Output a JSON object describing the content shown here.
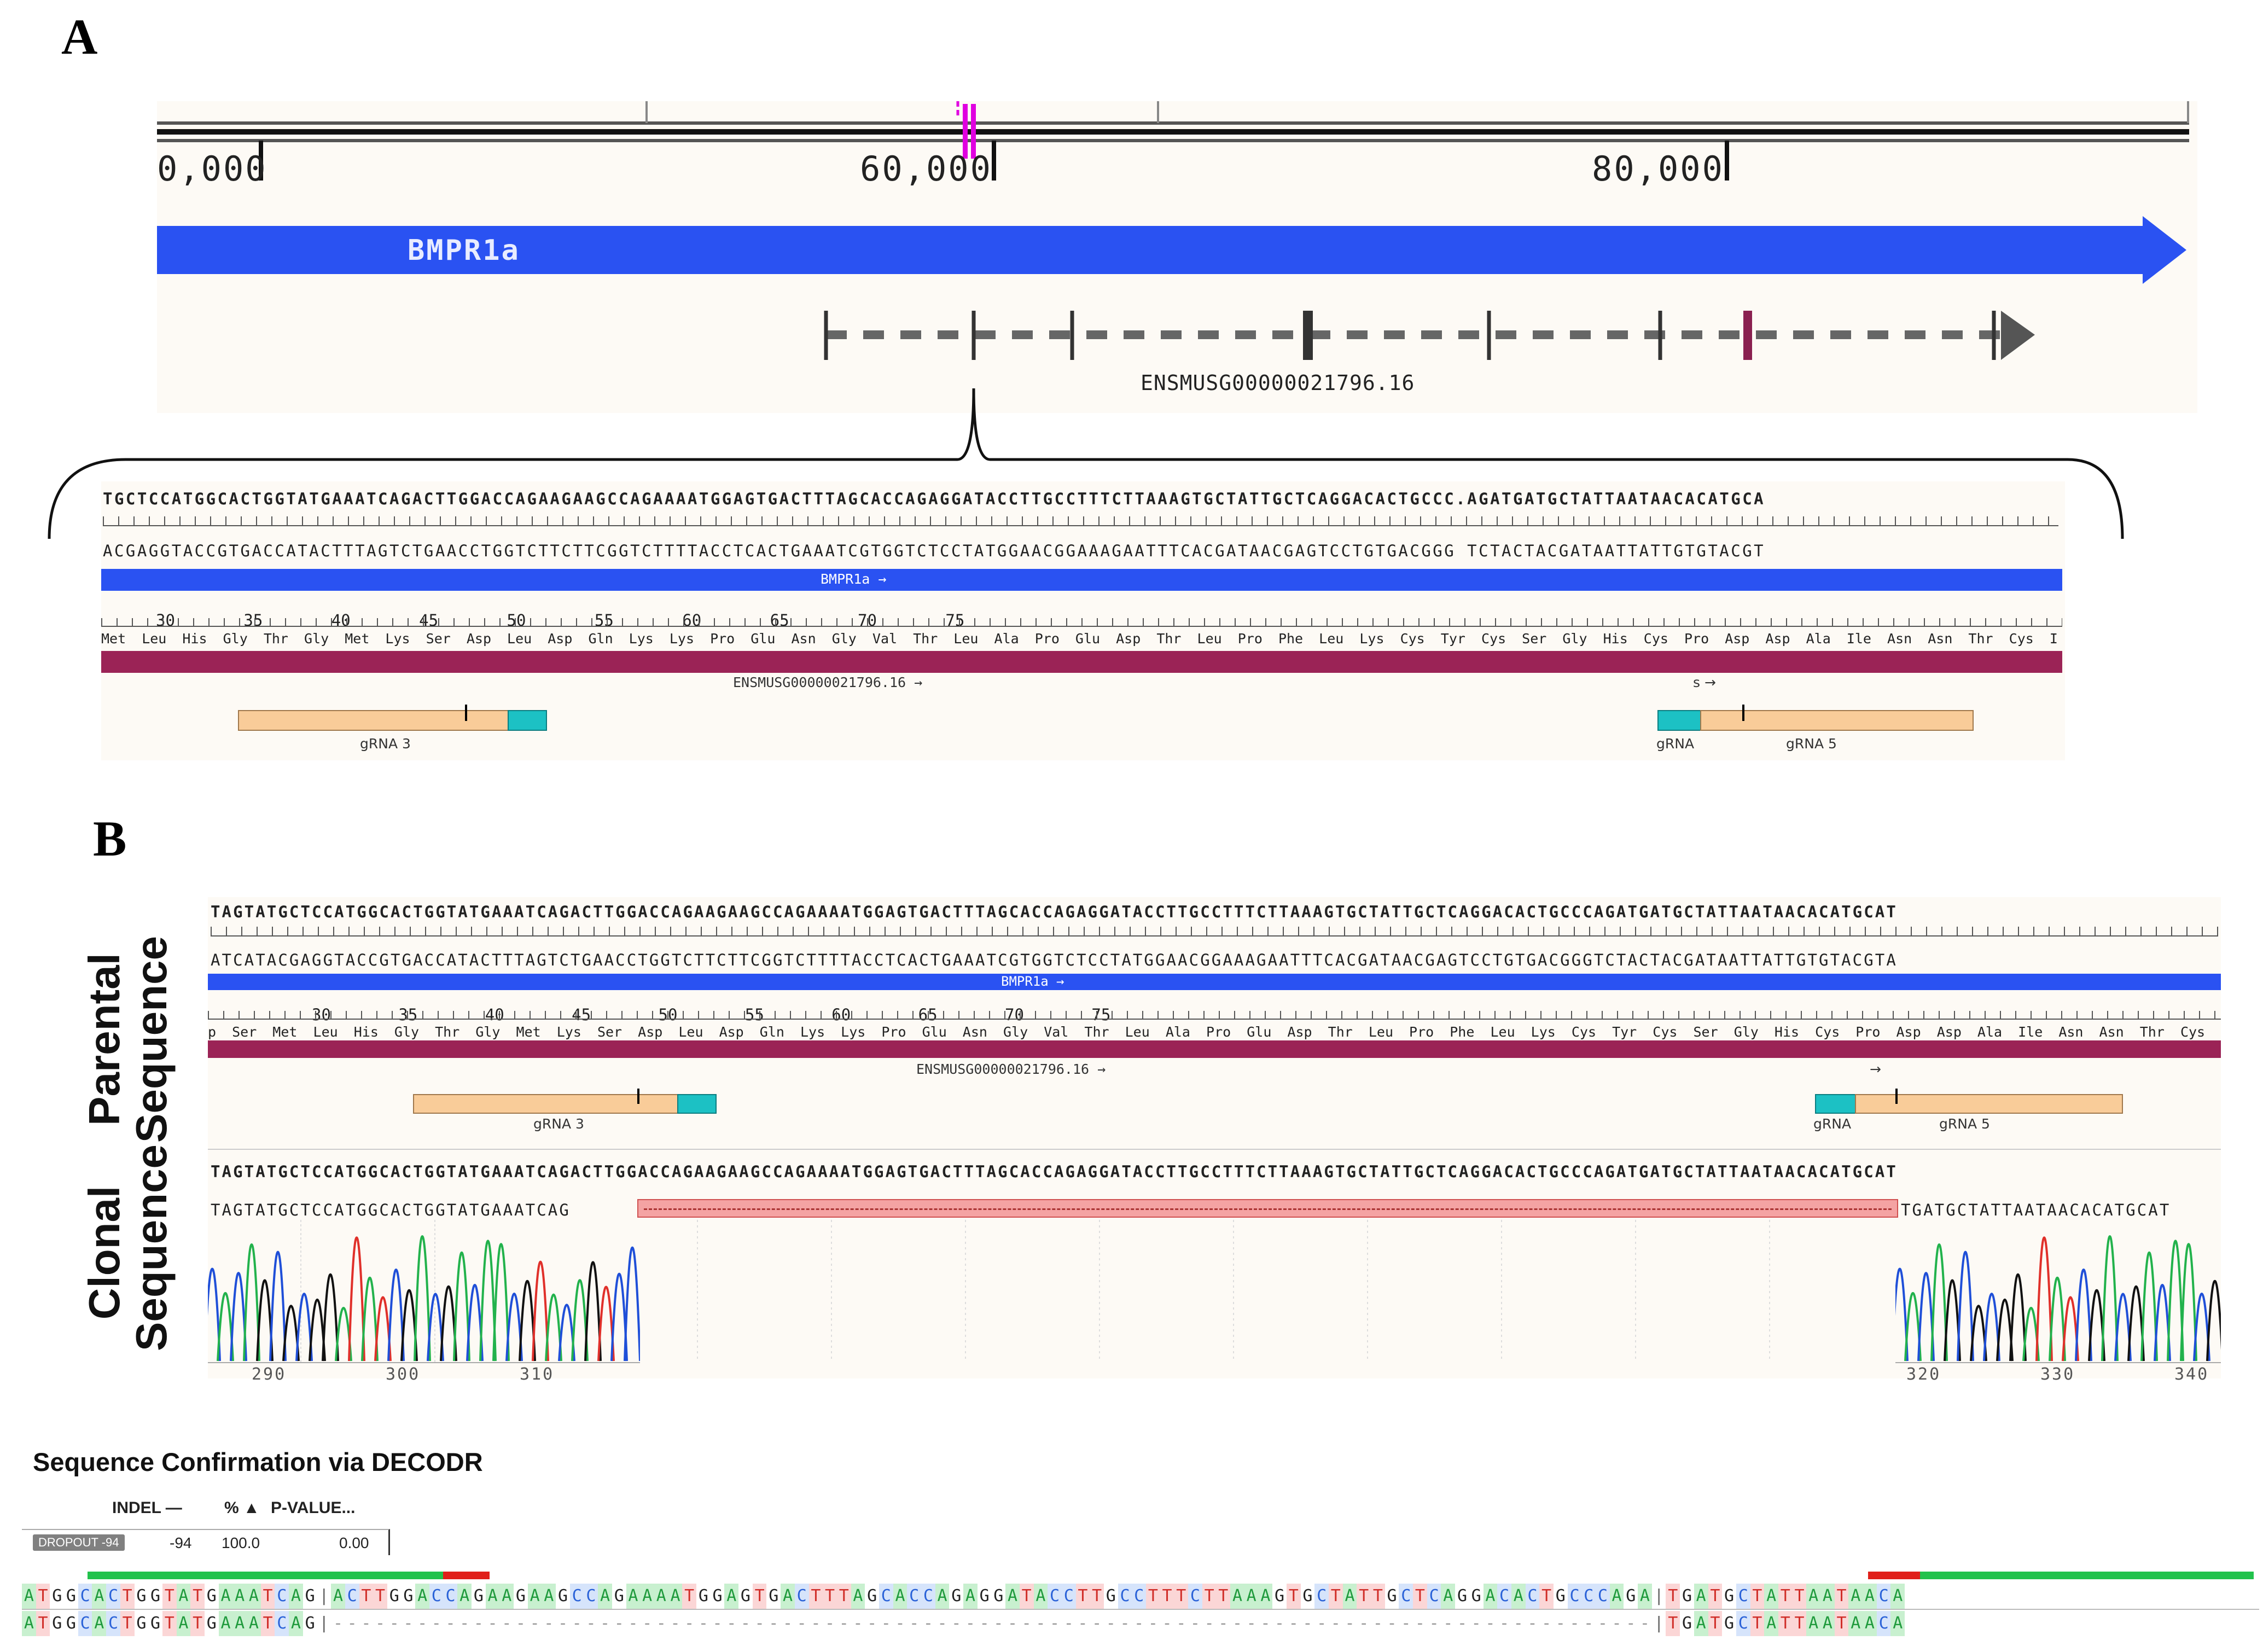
{
  "panels": {
    "a": "A",
    "b": "B"
  },
  "panel_a": {
    "axis_ticks": [
      "0,000",
      "60,000",
      "80,000"
    ],
    "gene_label": "BMPR1a",
    "transcript_label": "ENSMUSG00000021796.16",
    "seq_top": "TGCTCCATGGCACTGGTATGAAATCAGACTTGGACCAGAAGAAGCCAGAAAATGGAGTGACTTTAGCACCAGAGGATACCTTGCCTTTCTTAAAGTGCTATTGCTCAGGACACTGCCC.AGATGATGCTATTAATAACACATGCA",
    "seq_bottom": "ACGAGGTACCGTGACCATACTTTAGTCTGAACCTGGTCTTCTTCGGTCTTTTACCTCACTGAAATCGTGGTCTCCTATGGAACGGAAAGAATTTCACGATAACGAGTCCTGTGACGGG TCTACTACGATAATTATTGTGTACGT",
    "bar_label": "BMPR1a →",
    "aa_numbers": "30        35          40        45         50          55         60         65        70         75",
    "aa_row": "Met Leu His Gly Thr Gly Met Lys Ser Asp Leu Asp Gln Lys Lys Pro Glu Asn Gly Val Thr Leu Ala Pro Glu Asp Thr Leu Pro Phe Leu Lys Cys Tyr Cys Ser Gly His Cys Pro Asp Asp Ala Ile Asn Asn Thr Cys I",
    "track_label": "ENSMUSG00000021796.16 →",
    "small_arrow": "s →",
    "grna3": "gRNA 3",
    "grna": "gRNA",
    "grna5": "gRNA 5"
  },
  "panel_b": {
    "parental_title": "Parental Sequence",
    "clonal_title": "Clonal Sequence",
    "seq_top": "TAGTATGCTCCATGGCACTGGTATGAAATCAGACTTGGACCAGAAGAAGCCAGAAAATGGAGTGACTTTAGCACCAGAGGATACCTTGCCTTTCTTAAAGTGCTATTGCTCAGGACACTGCCCAGATGATGCTATTAATAACACATGCAT",
    "seq_bottom": "ATCATACGAGGTACCGTGACCATACTTTAGTCTGAACCTGGTCTTCTTCGGTCTTTTACCTCACTGAAATCGTGGTCTCCTATGGAACGGAAAGAATTTCACGATAACGAGTCCTGTGACGGGTCTACTACGATAATTATTGTGTACGTA",
    "bar_label": "BMPR1a →",
    "aa_numbers": "30        35          40        45         50          55         60         65        70         75",
    "aa_row": "p Ser Met Leu His Gly Thr Gly Met Lys Ser Asp Leu Asp Gln Lys Lys Pro Glu Asn Gly Val Thr Leu Ala Pro Glu Asp Thr Leu Pro Phe Leu Lys Cys Tyr Cys Ser Gly His Cys Pro Asp Asp Ala Ile Asn Asn Thr Cys Ile",
    "track_label": "ENSMUSG00000021796.16 →",
    "small_arrow": "→",
    "grna3": "gRNA 3",
    "grna": "gRNA",
    "grna5": "gRNA 5",
    "ref_seq": "TAGTATGCTCCATGGCACTGGTATGAAATCAGACTTGGACCAGAAGAAGCCAGAAAATGGAGTGACTTTAGCACCAGAGGATACCTTGCCTTTCTTAAAGTGCTATTGCTCAGGACACTGCCCAGATGATGCTATTAATAACACATGCAT",
    "clone_left": "TAGTATGCTCCATGGCACTGGTATGAAATCAG",
    "clone_right": "TGATGCTATTAATAACACATGCAT",
    "trace_ticks_left": [
      "290",
      "300",
      "310"
    ],
    "trace_ticks_right": [
      "320",
      "330",
      "340"
    ]
  },
  "decodr": {
    "title": "Sequence Confirmation via DECODR",
    "col_indel": "INDEL —",
    "col_pct": "% ▲",
    "col_p": "P-VALUE...",
    "badge": "DROPOUT -94",
    "indel": "-94",
    "pct": "100.0",
    "pval": "0.00",
    "ref_left": "ATGGCACTGGTATGAAATCAG",
    "ref_mid": "ACTTGGACCAGAAGAAGCCAGAAAATGGAGTGACTTTAGCACCAGAGGATACCTTGCCTTTCTTAAAGTGCTATTGCTCAGGACACTGCCCAGA",
    "ref_right": "TGATGCTATTAATAACA",
    "alt_left": "ATGGCACTGGTATGAAATCAG",
    "alt_right": "TGATGCTATTAATAACA"
  },
  "colors": {
    "gene_blue": "#2a52f2",
    "magenta": "#e000e0",
    "track_maroon": "#9b2356",
    "grna_fill": "#f9cc99",
    "pam_teal": "#1cc1c4",
    "deletion_red": "#f4a3a3",
    "trace_A": "#22b24c",
    "trace_C": "#1f4fd8",
    "trace_G": "#111111",
    "trace_T": "#e0302a"
  }
}
